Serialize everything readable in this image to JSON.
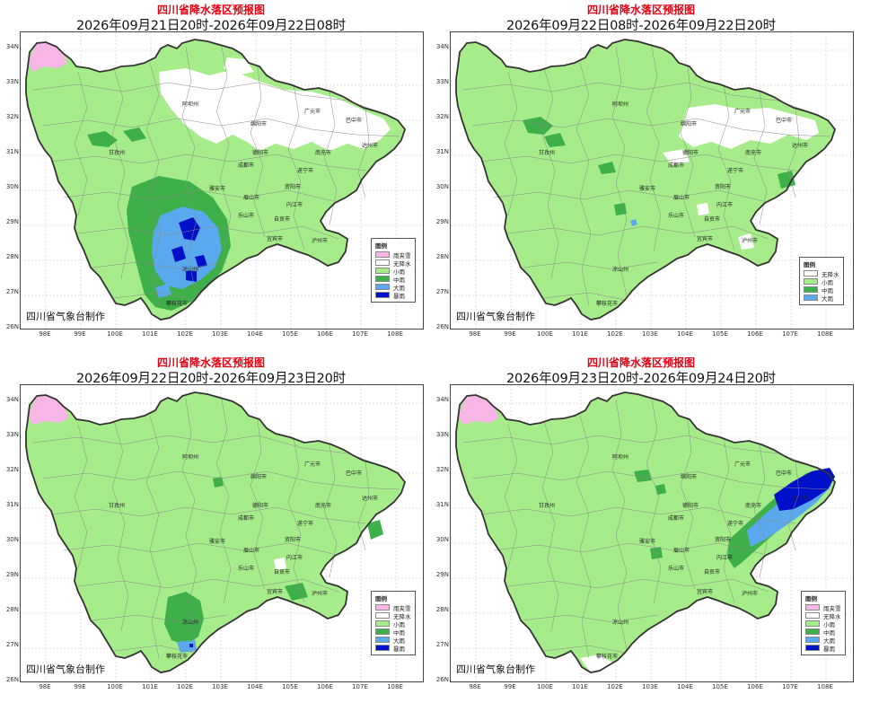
{
  "common_title": "四川省降水落区预报图",
  "credit": "四川省气象台制作",
  "legend_title": "图例",
  "colors": {
    "rain_snow": "#f7b6e6",
    "no_rain": "#ffffff",
    "light_rain": "#a6ec8b",
    "moderate_rain": "#3eb04a",
    "heavy_rain": "#5aa9ee",
    "rainstorm": "#0010c8",
    "boundary": "#333333",
    "county_line": "#8a8a8a"
  },
  "y_ticks": [
    "34N",
    "33N",
    "32N",
    "31N",
    "30N",
    "29N",
    "28N",
    "27N",
    "26N"
  ],
  "x_ticks": [
    "98E",
    "99E",
    "100E",
    "101E",
    "102E",
    "103E",
    "104E",
    "105E",
    "106E",
    "107E",
    "108E"
  ],
  "cities": [
    "阿坝州",
    "绵阳市",
    "广元市",
    "巴中市",
    "达州市",
    "南充市",
    "遂宁市",
    "德阳市",
    "成都市",
    "甘孜州",
    "雅安市",
    "眉山市",
    "资阳市",
    "乐山市",
    "内江市",
    "自贡市",
    "宜宾市",
    "泸州市",
    "凉山州",
    "攀枝花市"
  ],
  "panels": [
    {
      "title": "四川省降水落区预报图",
      "date": "2026年09月21日20时-2026年09月22日08时",
      "legend": [
        {
          "label": "雨夹雪",
          "color": "rain_snow"
        },
        {
          "label": "无降水",
          "color": "no_rain"
        },
        {
          "label": "小雨",
          "color": "light_rain"
        },
        {
          "label": "中雨",
          "color": "moderate_rain"
        },
        {
          "label": "大雨",
          "color": "heavy_rain"
        },
        {
          "label": "暴雨",
          "color": "rainstorm"
        }
      ]
    },
    {
      "title": "四川省降水落区预报图",
      "date": "2026年09月22日08时-2026年09月22日20时",
      "legend": [
        {
          "label": "无降水",
          "color": "no_rain"
        },
        {
          "label": "小雨",
          "color": "light_rain"
        },
        {
          "label": "中雨",
          "color": "moderate_rain"
        },
        {
          "label": "大雨",
          "color": "heavy_rain"
        }
      ]
    },
    {
      "title": "四川省降水落区预报图",
      "date": "2026年09月22日20时-2026年09月23日20时",
      "legend": [
        {
          "label": "雨夹雪",
          "color": "rain_snow"
        },
        {
          "label": "无降水",
          "color": "no_rain"
        },
        {
          "label": "小雨",
          "color": "light_rain"
        },
        {
          "label": "中雨",
          "color": "moderate_rain"
        },
        {
          "label": "大雨",
          "color": "heavy_rain"
        },
        {
          "label": "暴雨",
          "color": "rainstorm"
        }
      ]
    },
    {
      "title": "四川省降水落区预报图",
      "date": "2026年09月23日20时-2026年09月24日20时",
      "legend": [
        {
          "label": "雨夹雪",
          "color": "rain_snow"
        },
        {
          "label": "无降水",
          "color": "no_rain"
        },
        {
          "label": "小雨",
          "color": "light_rain"
        },
        {
          "label": "中雨",
          "color": "moderate_rain"
        },
        {
          "label": "大雨",
          "color": "heavy_rain"
        },
        {
          "label": "暴雨",
          "color": "rainstorm"
        }
      ]
    }
  ]
}
